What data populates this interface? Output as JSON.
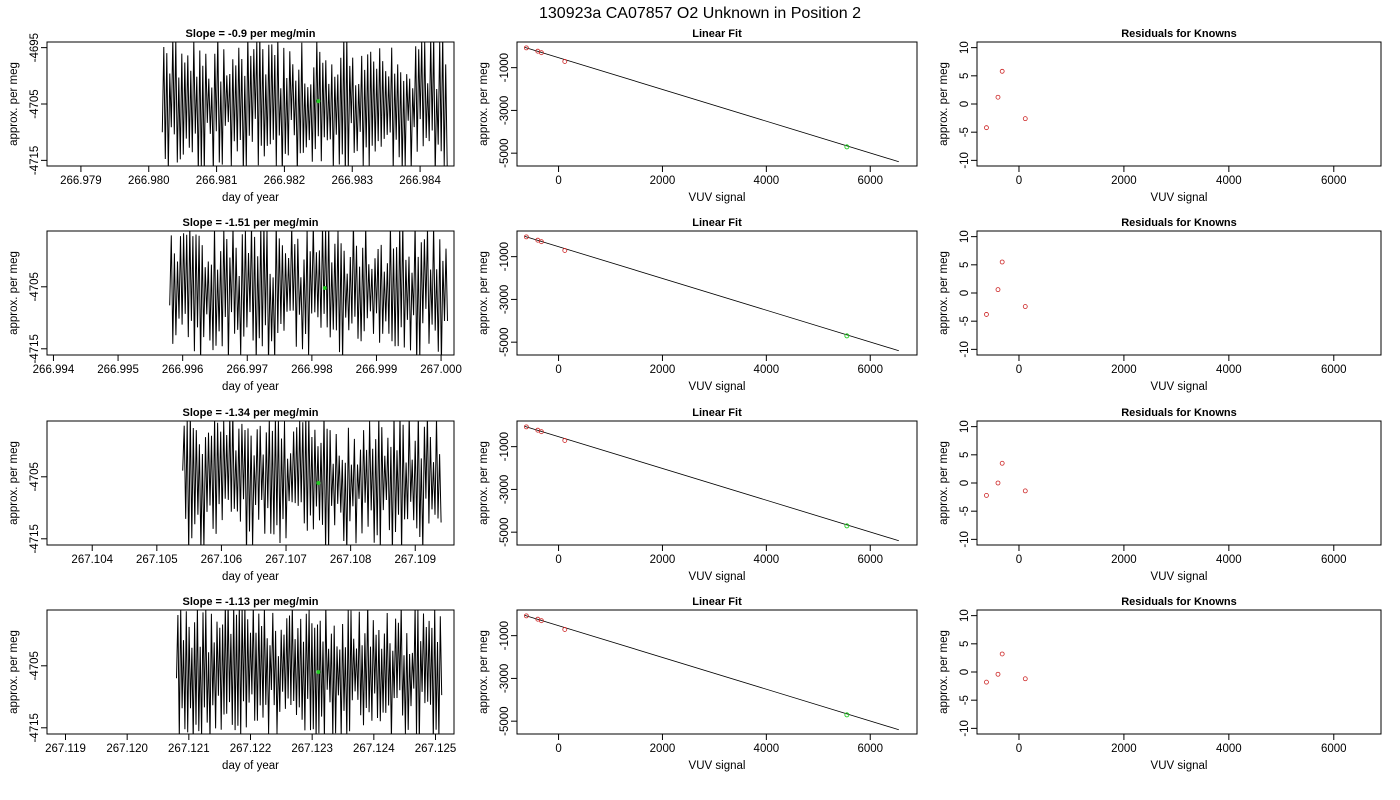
{
  "page": {
    "suptitle": "130923a     CA07857   O2 Unknown in Position  2",
    "colors": {
      "trace": "#000000",
      "known_points": "#cc2222",
      "unknown_point": "#22cc22",
      "fit_line": "#000000",
      "background": "#ffffff"
    }
  },
  "chart_data": [
    {
      "type": "line",
      "panel": "timeseries",
      "title": "Slope =  -0.9  per meg/min",
      "xlabel": "day of year",
      "ylabel": "approx. per meg",
      "xlim": [
        266.9785,
        266.9845
      ],
      "ylim": [
        -4716,
        -4694
      ],
      "xticks": [
        "266.979",
        "266.980",
        "266.981",
        "266.982",
        "266.983",
        "266.984"
      ],
      "yticks": [
        "-4695",
        "-4705",
        "-4715"
      ],
      "trace": {
        "x_start": 266.9802,
        "x_end": 266.9844,
        "y_min": -4716,
        "y_max": -4694,
        "oscillations": 95,
        "first": -4710,
        "seed": 11
      },
      "highlight": {
        "x": 266.9825,
        "y": -4704.5
      }
    },
    {
      "type": "scatter",
      "panel": "fit",
      "title": "Linear Fit",
      "xlabel": "VUV signal",
      "ylabel": "approx. per meg",
      "xlim": [
        -800,
        6900
      ],
      "ylim": [
        -5600,
        200
      ],
      "xticks": [
        "0",
        "2000",
        "4000",
        "6000"
      ],
      "yticks": [
        "-1000",
        "-3000",
        "-5000"
      ],
      "known_points": [
        {
          "x": -620,
          "y": -75
        },
        {
          "x": -400,
          "y": -230
        },
        {
          "x": -330,
          "y": -300
        },
        {
          "x": 120,
          "y": -710
        }
      ],
      "unknown_point": {
        "x": 5550,
        "y": -4705
      },
      "fit_line": {
        "x0": -650,
        "y0": -50,
        "x1": 6550,
        "y1": -5400
      }
    },
    {
      "type": "scatter",
      "panel": "residuals",
      "title": "Residuals for Knowns",
      "xlabel": "VUV signal",
      "ylabel": "approx. per meg",
      "xlim": [
        -800,
        6900
      ],
      "ylim": [
        -11,
        11
      ],
      "xticks": [
        "0",
        "2000",
        "4000",
        "6000"
      ],
      "yticks": [
        "-10",
        "-5",
        "0",
        "5",
        "10"
      ],
      "points": [
        {
          "x": -620,
          "y": -4.2
        },
        {
          "x": -400,
          "y": 1.2
        },
        {
          "x": -320,
          "y": 5.8
        },
        {
          "x": 120,
          "y": -2.6
        }
      ]
    },
    {
      "type": "line",
      "panel": "timeseries",
      "title": "Slope =  -1.51  per meg/min",
      "xlabel": "day of year",
      "ylabel": "approx. per meg",
      "xlim": [
        266.9939,
        267.0002
      ],
      "ylim": [
        -4716,
        -4696
      ],
      "xticks": [
        "266.994",
        "266.995",
        "266.996",
        "266.997",
        "266.998",
        "266.999",
        "267.000"
      ],
      "yticks": [
        "-4705",
        "-4715"
      ],
      "trace": {
        "x_start": 266.9958,
        "x_end": 267.0001,
        "y_min": -4716,
        "y_max": -4696,
        "oscillations": 90,
        "first": -4708,
        "seed": 23
      },
      "highlight": {
        "x": 266.9982,
        "y": -4705.2
      }
    },
    {
      "type": "scatter",
      "panel": "fit",
      "title": "Linear Fit",
      "xlabel": "VUV signal",
      "ylabel": "approx. per meg",
      "xlim": [
        -800,
        6900
      ],
      "ylim": [
        -5600,
        200
      ],
      "xticks": [
        "0",
        "2000",
        "4000",
        "6000"
      ],
      "yticks": [
        "-1000",
        "-3000",
        "-5000"
      ],
      "known_points": [
        {
          "x": -620,
          "y": -75
        },
        {
          "x": -400,
          "y": -230
        },
        {
          "x": -330,
          "y": -300
        },
        {
          "x": 120,
          "y": -710
        }
      ],
      "unknown_point": {
        "x": 5550,
        "y": -4705
      },
      "fit_line": {
        "x0": -650,
        "y0": -50,
        "x1": 6550,
        "y1": -5400
      }
    },
    {
      "type": "scatter",
      "panel": "residuals",
      "title": "Residuals for Knowns",
      "xlabel": "VUV signal",
      "ylabel": "approx. per meg",
      "xlim": [
        -800,
        6900
      ],
      "ylim": [
        -11,
        11
      ],
      "xticks": [
        "0",
        "2000",
        "4000",
        "6000"
      ],
      "yticks": [
        "-10",
        "-5",
        "0",
        "5",
        "10"
      ],
      "points": [
        {
          "x": -620,
          "y": -3.8
        },
        {
          "x": -400,
          "y": 0.6
        },
        {
          "x": -320,
          "y": 5.5
        },
        {
          "x": 120,
          "y": -2.4
        }
      ]
    },
    {
      "type": "line",
      "panel": "timeseries",
      "title": "Slope =  -1.34  per meg/min",
      "xlabel": "day of year",
      "ylabel": "approx. per meg",
      "xlim": [
        267.1033,
        267.1096
      ],
      "ylim": [
        -4716,
        -4696
      ],
      "xticks": [
        "267.104",
        "267.105",
        "267.106",
        "267.107",
        "267.108",
        "267.109"
      ],
      "yticks": [
        "-4705",
        "-4715"
      ],
      "trace": {
        "x_start": 267.1054,
        "x_end": 267.1094,
        "y_min": -4716,
        "y_max": -4696,
        "oscillations": 85,
        "first": -4704,
        "seed": 37
      },
      "highlight": {
        "x": 267.1075,
        "y": -4706
      }
    },
    {
      "type": "scatter",
      "panel": "fit",
      "title": "Linear Fit",
      "xlabel": "VUV signal",
      "ylabel": "approx. per meg",
      "xlim": [
        -800,
        6900
      ],
      "ylim": [
        -5600,
        200
      ],
      "xticks": [
        "0",
        "2000",
        "4000",
        "6000"
      ],
      "yticks": [
        "-1000",
        "-3000",
        "-5000"
      ],
      "known_points": [
        {
          "x": -620,
          "y": -75
        },
        {
          "x": -400,
          "y": -230
        },
        {
          "x": -330,
          "y": -300
        },
        {
          "x": 120,
          "y": -710
        }
      ],
      "unknown_point": {
        "x": 5550,
        "y": -4705
      },
      "fit_line": {
        "x0": -650,
        "y0": -50,
        "x1": 6550,
        "y1": -5400
      }
    },
    {
      "type": "scatter",
      "panel": "residuals",
      "title": "Residuals for Knowns",
      "xlabel": "VUV signal",
      "ylabel": "approx. per meg",
      "xlim": [
        -800,
        6900
      ],
      "ylim": [
        -11,
        11
      ],
      "xticks": [
        "0",
        "2000",
        "4000",
        "6000"
      ],
      "yticks": [
        "-10",
        "-5",
        "0",
        "5",
        "10"
      ],
      "points": [
        {
          "x": -620,
          "y": -2.2
        },
        {
          "x": -400,
          "y": 0.0
        },
        {
          "x": -320,
          "y": 3.5
        },
        {
          "x": 120,
          "y": -1.4
        }
      ]
    },
    {
      "type": "line",
      "panel": "timeseries",
      "title": "Slope =  -1.13  per meg/min",
      "xlabel": "day of year",
      "ylabel": "approx. per meg",
      "xlim": [
        267.1187,
        267.1253
      ],
      "ylim": [
        -4716,
        -4696
      ],
      "xticks": [
        "267.119",
        "267.120",
        "267.121",
        "267.122",
        "267.123",
        "267.124",
        "267.125"
      ],
      "yticks": [
        "-4705",
        "-4715"
      ],
      "trace": {
        "x_start": 267.1208,
        "x_end": 267.1251,
        "y_min": -4716,
        "y_max": -4696,
        "oscillations": 95,
        "first": -4707,
        "seed": 53
      },
      "highlight": {
        "x": 267.1231,
        "y": -4706
      }
    },
    {
      "type": "scatter",
      "panel": "fit",
      "title": "Linear Fit",
      "xlabel": "VUV signal",
      "ylabel": "approx. per meg",
      "xlim": [
        -800,
        6900
      ],
      "ylim": [
        -5600,
        200
      ],
      "xticks": [
        "0",
        "2000",
        "4000",
        "6000"
      ],
      "yticks": [
        "-1000",
        "-3000",
        "-5000"
      ],
      "known_points": [
        {
          "x": -620,
          "y": -75
        },
        {
          "x": -400,
          "y": -230
        },
        {
          "x": -330,
          "y": -300
        },
        {
          "x": 120,
          "y": -710
        }
      ],
      "unknown_point": {
        "x": 5550,
        "y": -4705
      },
      "fit_line": {
        "x0": -650,
        "y0": -50,
        "x1": 6550,
        "y1": -5400
      }
    },
    {
      "type": "scatter",
      "panel": "residuals",
      "title": "Residuals for Knowns",
      "xlabel": "VUV signal",
      "ylabel": "approx. per meg",
      "xlim": [
        -800,
        6900
      ],
      "ylim": [
        -11,
        11
      ],
      "xticks": [
        "0",
        "2000",
        "4000",
        "6000"
      ],
      "yticks": [
        "-10",
        "-5",
        "0",
        "5",
        "10"
      ],
      "points": [
        {
          "x": -620,
          "y": -1.8
        },
        {
          "x": -400,
          "y": -0.4
        },
        {
          "x": -320,
          "y": 3.2
        },
        {
          "x": 120,
          "y": -1.2
        }
      ]
    }
  ]
}
